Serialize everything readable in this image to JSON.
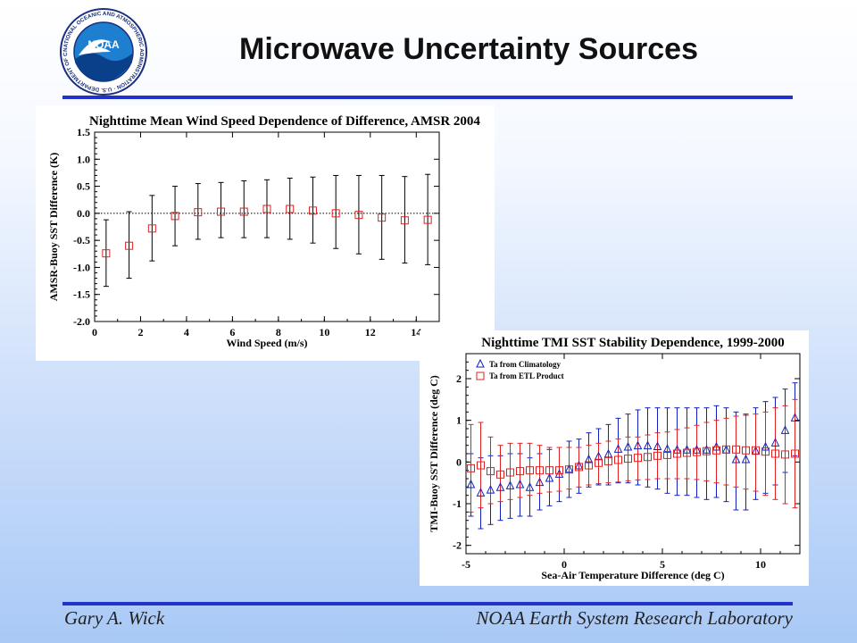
{
  "header": {
    "title": "Microwave Uncertainty Sources"
  },
  "logo": {
    "center_text": "NOAA",
    "ring_text": "NATIONAL OCEANIC AND ATMOSPHERIC ADMINISTRATION · U.S. DEPARTMENT OF COMMERCE ·",
    "colors": {
      "ring": "#ffffff",
      "outline": "#1a2f80",
      "sky": "#1e7fd0",
      "sea": "#0a3f8a",
      "bird": "#ffffff"
    }
  },
  "footer": {
    "left": "Gary A. Wick",
    "right": "NOAA Earth System Research Laboratory"
  },
  "colors": {
    "rule": "#2233cc",
    "red": "#e02020",
    "blue": "#1020c0"
  },
  "chart_data": [
    {
      "type": "scatter",
      "title": "Nighttime Mean Wind Speed Dependence of Difference, AMSR 2004",
      "xlabel": "Wind Speed (m/s)",
      "ylabel": "AMSR-Buoy SST Difference (K)",
      "xlim": [
        0,
        15
      ],
      "ylim": [
        -2.0,
        1.5
      ],
      "xticks": [
        "0",
        "2",
        "4",
        "6",
        "8",
        "10",
        "12",
        "14"
      ],
      "yticks": [
        "-2.0",
        "-1.5",
        "-1.0",
        "-0.5",
        "0.0",
        "0.5",
        "1.0",
        "1.5"
      ],
      "reference_line": 0,
      "series": [
        {
          "marker": "square",
          "color": "#e02020",
          "x": [
            0.5,
            1.5,
            2.5,
            3.5,
            4.5,
            5.5,
            6.5,
            7.5,
            8.5,
            9.5,
            10.5,
            11.5,
            12.5,
            13.5,
            14.5
          ],
          "y": [
            -0.74,
            -0.6,
            -0.28,
            -0.05,
            0.02,
            0.03,
            0.03,
            0.08,
            0.08,
            0.05,
            0.0,
            -0.03,
            -0.08,
            -0.13,
            -0.12
          ],
          "err_low": [
            -1.35,
            -1.2,
            -0.88,
            -0.6,
            -0.48,
            -0.45,
            -0.45,
            -0.45,
            -0.48,
            -0.55,
            -0.65,
            -0.75,
            -0.85,
            -0.92,
            -0.95
          ],
          "err_high": [
            -0.12,
            0.03,
            0.33,
            0.5,
            0.55,
            0.57,
            0.6,
            0.62,
            0.65,
            0.67,
            0.7,
            0.7,
            0.7,
            0.68,
            0.72
          ]
        }
      ]
    },
    {
      "type": "scatter",
      "title": "Nighttime TMI SST Stability Dependence, 1999-2000",
      "xlabel": "Sea-Air Temperature Difference (deg C)",
      "ylabel": "TMI-Buoy SST Difference (deg C)",
      "xlim": [
        -5,
        12
      ],
      "ylim": [
        -2.2,
        2.6
      ],
      "xticks": [
        "-5",
        "0",
        "5",
        "10"
      ],
      "yticks": [
        "-2",
        "-1",
        "0",
        "1",
        "2"
      ],
      "legend": {
        "position": "top-left",
        "entries": [
          "Ta from Climatology",
          "Ta from ETL Product"
        ]
      },
      "series": [
        {
          "name": "Ta from Climatology",
          "marker": "triangle",
          "color": "#1020c0",
          "x": [
            -4.75,
            -4.25,
            -3.75,
            -3.25,
            -2.75,
            -2.25,
            -1.75,
            -1.25,
            -0.75,
            -0.25,
            0.25,
            0.75,
            1.25,
            1.75,
            2.25,
            2.75,
            3.25,
            3.75,
            4.25,
            4.75,
            5.25,
            5.75,
            6.25,
            6.75,
            7.25,
            7.75,
            8.25,
            8.75,
            9.25,
            9.75,
            10.25,
            10.75,
            11.25,
            11.75
          ],
          "y": [
            -0.55,
            -0.75,
            -0.68,
            -0.62,
            -0.58,
            -0.55,
            -0.62,
            -0.5,
            -0.4,
            -0.3,
            -0.18,
            -0.1,
            0.05,
            0.12,
            0.18,
            0.3,
            0.35,
            0.38,
            0.38,
            0.36,
            0.3,
            0.28,
            0.28,
            0.28,
            0.28,
            0.35,
            0.28,
            0.05,
            0.05,
            0.25,
            0.35,
            0.45,
            0.75,
            1.05
          ],
          "err_low": [
            -1.3,
            -1.6,
            -1.5,
            -1.4,
            -1.35,
            -1.3,
            -1.3,
            -1.15,
            -1.05,
            -0.95,
            -0.85,
            -0.75,
            -0.6,
            -0.55,
            -0.55,
            -0.5,
            -0.5,
            -0.55,
            -0.6,
            -0.65,
            -0.75,
            -0.8,
            -0.8,
            -0.85,
            -0.9,
            -0.85,
            -0.95,
            -1.15,
            -1.15,
            -0.9,
            -0.75,
            -0.55,
            -0.25,
            0.15
          ],
          "err_high": [
            0.2,
            0.1,
            0.15,
            0.15,
            0.2,
            0.2,
            0.1,
            0.2,
            0.3,
            0.35,
            0.5,
            0.55,
            0.7,
            0.8,
            0.9,
            1.05,
            1.15,
            1.25,
            1.3,
            1.3,
            1.3,
            1.3,
            1.3,
            1.3,
            1.3,
            1.35,
            1.3,
            1.2,
            1.15,
            1.3,
            1.45,
            1.55,
            1.75,
            1.9
          ]
        },
        {
          "name": "Ta from ETL Product",
          "marker": "square",
          "color": "#e02020",
          "x": [
            -4.75,
            -4.25,
            -3.75,
            -3.25,
            -2.75,
            -2.25,
            -1.75,
            -1.25,
            -0.75,
            -0.25,
            0.25,
            0.75,
            1.25,
            1.75,
            2.25,
            2.75,
            3.25,
            3.75,
            4.25,
            4.75,
            5.25,
            5.75,
            6.25,
            6.75,
            7.25,
            7.75,
            8.25,
            8.75,
            9.25,
            9.75,
            10.25,
            10.75,
            11.25,
            11.75
          ],
          "y": [
            -0.15,
            -0.08,
            -0.22,
            -0.3,
            -0.25,
            -0.22,
            -0.2,
            -0.2,
            -0.2,
            -0.2,
            -0.18,
            -0.12,
            -0.08,
            -0.02,
            0.02,
            0.05,
            0.08,
            0.1,
            0.12,
            0.15,
            0.17,
            0.2,
            0.22,
            0.24,
            0.26,
            0.28,
            0.3,
            0.3,
            0.28,
            0.28,
            0.25,
            0.2,
            0.18,
            0.2
          ],
          "err_low": [
            -1.2,
            -1.1,
            -1.0,
            -0.95,
            -0.9,
            -0.85,
            -0.8,
            -0.75,
            -0.72,
            -0.7,
            -0.65,
            -0.6,
            -0.55,
            -0.52,
            -0.5,
            -0.48,
            -0.45,
            -0.43,
            -0.42,
            -0.4,
            -0.4,
            -0.4,
            -0.4,
            -0.42,
            -0.45,
            -0.5,
            -0.55,
            -0.6,
            -0.65,
            -0.7,
            -0.8,
            -0.9,
            -1.0,
            -1.1
          ],
          "err_high": [
            0.9,
            0.95,
            0.6,
            0.4,
            0.45,
            0.45,
            0.45,
            0.4,
            0.35,
            0.35,
            0.35,
            0.35,
            0.4,
            0.45,
            0.5,
            0.55,
            0.6,
            0.6,
            0.65,
            0.7,
            0.72,
            0.78,
            0.82,
            0.88,
            0.95,
            1.0,
            1.05,
            1.1,
            1.12,
            1.15,
            1.2,
            1.3,
            1.35,
            1.5
          ]
        }
      ]
    }
  ]
}
